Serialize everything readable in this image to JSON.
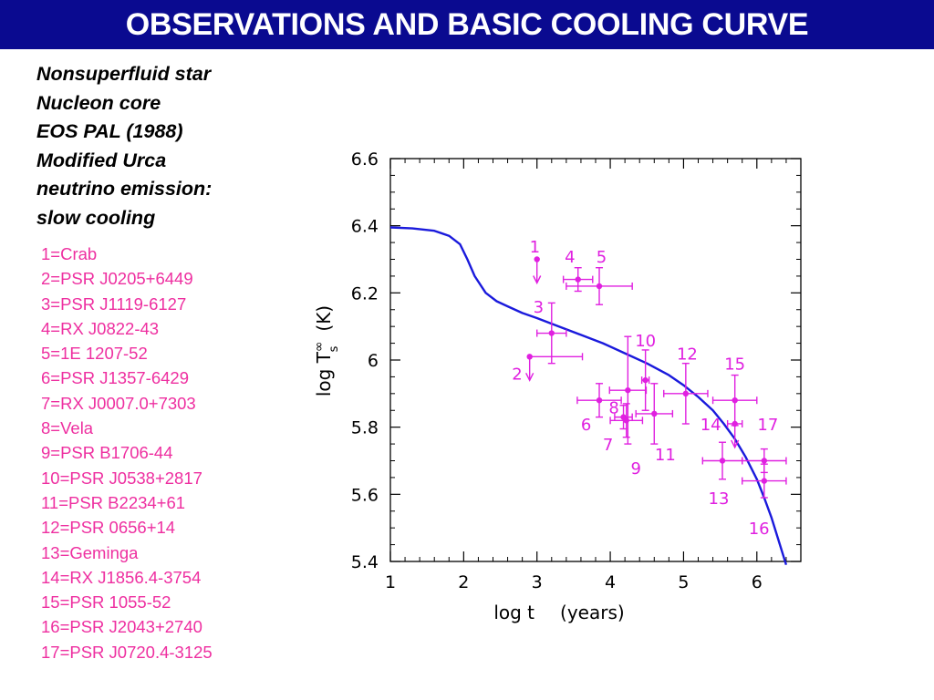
{
  "header": {
    "title": "OBSERVATIONS AND BASIC COOLING CURVE"
  },
  "model": {
    "lines": [
      "Nonsuperfluid star",
      "Nucleon core",
      "EOS PAL (1988)",
      "Modified Urca",
      "neutrino emission:",
      "slow cooling"
    ]
  },
  "legend": {
    "items": [
      "1=Crab",
      "2=PSR J0205+6449",
      "3=PSR J1119-6127",
      "4=RX J0822-43",
      "5=1E 1207-52",
      "6=PSR J1357-6429",
      "7=RX J0007.0+7303",
      "8=Vela",
      "9=PSR B1706-44",
      "10=PSR J0538+2817",
      "11=PSR B2234+61",
      "12=PSR 0656+14",
      "13=Geminga",
      "14=RX J1856.4-3754",
      "15=PSR 1055-52",
      "16=PSR J2043+2740",
      "17=PSR J0720.4-3125"
    ]
  },
  "colors": {
    "title_bg": "#0a0a90",
    "title_text": "#ffffff",
    "legend_text": "#ee2fa0",
    "data": "#e020e0",
    "curve": "#1a1adc"
  },
  "chart_data": {
    "type": "scatter",
    "xlabel_math": "log t",
    "xlabel_unit": "(years)",
    "ylabel_math": "log T",
    "ylabel_unit": "(K)",
    "xlim": [
      1,
      6.6
    ],
    "ylim": [
      5.4,
      6.6
    ],
    "xticks": [
      "1",
      "2",
      "3",
      "4",
      "5",
      "6"
    ],
    "yticks": [
      "5.4",
      "5.6",
      "5.8",
      "6",
      "6.2",
      "6.4",
      "6.6"
    ],
    "curve": {
      "x": [
        1.0,
        1.3,
        1.6,
        1.8,
        1.95,
        2.05,
        2.15,
        2.3,
        2.45,
        2.6,
        2.8,
        3.0,
        3.3,
        3.6,
        3.9,
        4.2,
        4.5,
        4.8,
        5.0,
        5.2,
        5.4,
        5.55,
        5.7,
        5.85,
        6.0,
        6.1,
        6.2,
        6.3,
        6.4
      ],
      "y": [
        6.395,
        6.392,
        6.385,
        6.37,
        6.345,
        6.3,
        6.25,
        6.2,
        6.175,
        6.16,
        6.14,
        6.125,
        6.1,
        6.075,
        6.05,
        6.02,
        5.99,
        5.955,
        5.925,
        5.89,
        5.85,
        5.81,
        5.765,
        5.71,
        5.645,
        5.59,
        5.53,
        5.46,
        5.39
      ]
    },
    "points": [
      {
        "label": "1",
        "x": 3.0,
        "y": 6.3,
        "xerr": 0,
        "yerr": 0,
        "upper_limit": true,
        "lx": 2.97,
        "ly": 6.34
      },
      {
        "label": "2",
        "x": 2.9,
        "y": 6.01,
        "xerr": 0,
        "yerr": 0,
        "upper_limit": true,
        "lx": 2.73,
        "ly": 5.96,
        "xerr_lo": 0,
        "xerr_hi": 0.72
      },
      {
        "label": "3",
        "x": 3.2,
        "y": 6.08,
        "xerr": 0.2,
        "yerr": 0.09,
        "upper_limit": false,
        "lx": 3.02,
        "ly": 6.16
      },
      {
        "label": "4",
        "x": 3.56,
        "y": 6.24,
        "xerr": 0.2,
        "yerr": 0.035,
        "upper_limit": false,
        "lx": 3.45,
        "ly": 6.31
      },
      {
        "label": "5",
        "x": 3.85,
        "y": 6.22,
        "xerr": 0.45,
        "yerr": 0.055,
        "upper_limit": false,
        "lx": 3.88,
        "ly": 6.31
      },
      {
        "label": "6",
        "x": 3.85,
        "y": 5.88,
        "xerr": 0.3,
        "yerr": 0.05,
        "upper_limit": false,
        "lx": 3.67,
        "ly": 5.81
      },
      {
        "label": "7",
        "x": 4.18,
        "y": 5.83,
        "xerr": 0.12,
        "yerr": 0.035,
        "upper_limit": false,
        "lx": 3.97,
        "ly": 5.75
      },
      {
        "label": "8",
        "x": 4.22,
        "y": 5.82,
        "xerr": 0.22,
        "yerr": 0.05,
        "upper_limit": false,
        "lx": 4.05,
        "ly": 5.86
      },
      {
        "label": "9",
        "x": 4.24,
        "y": 5.91,
        "xerr": 0.25,
        "yerr": 0.16,
        "upper_limit": false,
        "lx": 4.35,
        "ly": 5.68
      },
      {
        "label": "10",
        "x": 4.48,
        "y": 5.94,
        "xerr": 0.05,
        "yerr": 0.09,
        "upper_limit": false,
        "lx": 4.48,
        "ly": 6.06
      },
      {
        "label": "11",
        "x": 4.6,
        "y": 5.84,
        "xerr": 0.25,
        "yerr": 0.09,
        "upper_limit": false,
        "lx": 4.75,
        "ly": 5.72
      },
      {
        "label": "12",
        "x": 5.03,
        "y": 5.9,
        "xerr": 0.3,
        "yerr": 0.09,
        "upper_limit": false,
        "lx": 5.05,
        "ly": 6.02
      },
      {
        "label": "13",
        "x": 5.53,
        "y": 5.7,
        "xerr": 0.27,
        "yerr": 0.055,
        "upper_limit": false,
        "lx": 5.48,
        "ly": 5.59
      },
      {
        "label": "14",
        "x": 5.7,
        "y": 5.81,
        "xerr": 0.1,
        "yerr": 0,
        "upper_limit": true,
        "lx": 5.37,
        "ly": 5.81
      },
      {
        "label": "15",
        "x": 5.7,
        "y": 5.88,
        "xerr": 0.3,
        "yerr": 0.075,
        "upper_limit": false,
        "lx": 5.7,
        "ly": 5.99
      },
      {
        "label": "16",
        "x": 6.1,
        "y": 5.64,
        "xerr": 0.3,
        "yerr": 0.05,
        "upper_limit": false,
        "lx": 6.03,
        "ly": 5.5
      },
      {
        "label": "17",
        "x": 6.1,
        "y": 5.7,
        "xerr": 0.3,
        "yerr": 0.035,
        "upper_limit": false,
        "lx": 6.15,
        "ly": 5.81
      }
    ]
  }
}
